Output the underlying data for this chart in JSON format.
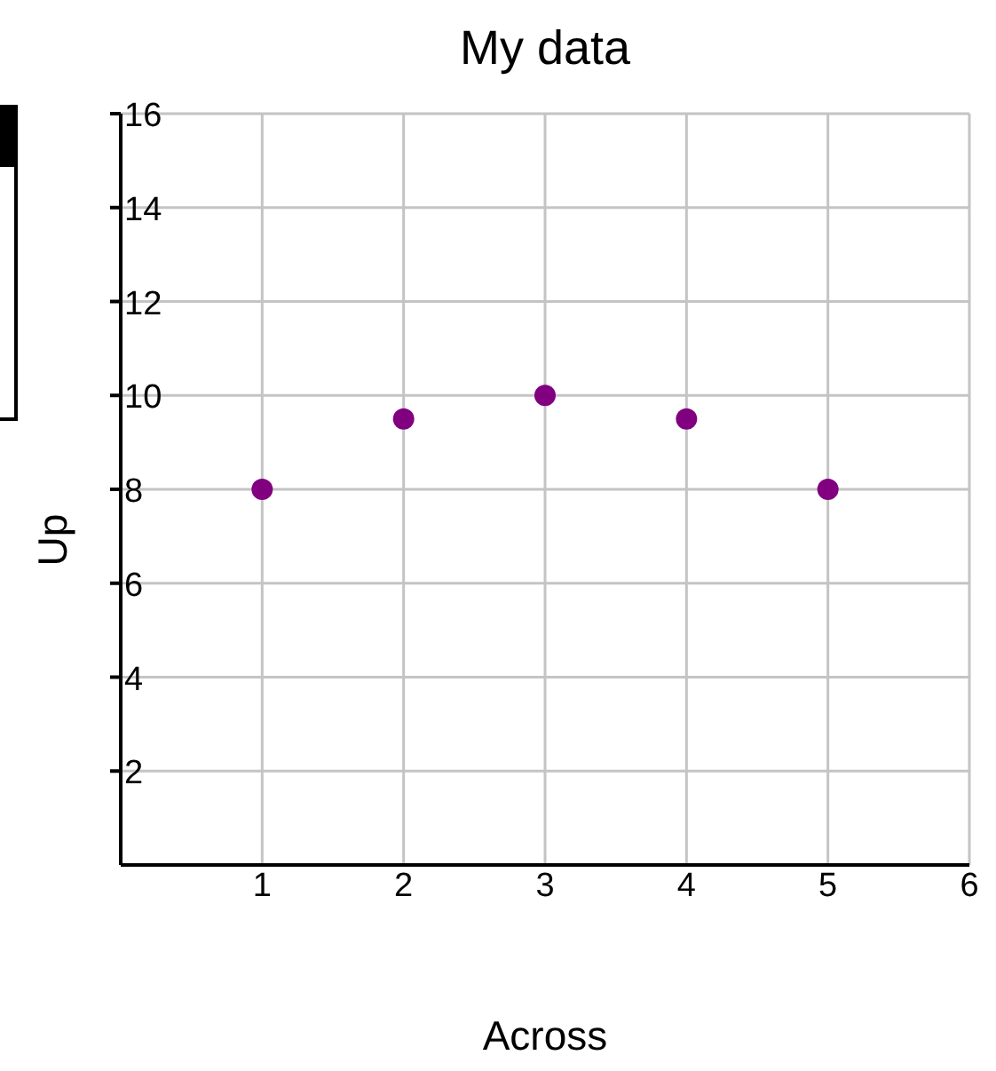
{
  "chart_data": {
    "type": "scatter",
    "title": "My data",
    "xlabel": "Across",
    "ylabel": "Up",
    "x": [
      1,
      2,
      3,
      4,
      5
    ],
    "values": [
      8,
      9.5,
      10,
      9.5,
      8
    ],
    "color": "#800080",
    "marker": "circle",
    "grid": true,
    "xlim": [
      0,
      6
    ],
    "xticks": [
      1,
      2,
      3,
      4,
      5,
      6
    ],
    "ylim": [
      0,
      16
    ],
    "yticks": [
      2,
      4,
      6,
      8,
      10,
      12,
      14,
      16
    ]
  }
}
